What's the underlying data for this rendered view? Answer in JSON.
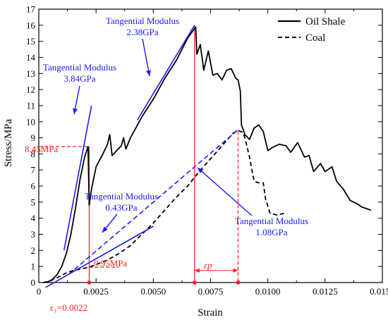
{
  "chart_data": {
    "type": "line",
    "xlabel": "Strain",
    "ylabel": "Stress/MPa",
    "xlim": [
      0,
      0.015
    ],
    "ylim": [
      0,
      17
    ],
    "x_ticks": [
      "0",
      "0.0025",
      "0.0050",
      "0.0075",
      "0.0100",
      "0.0125",
      "0.0150"
    ],
    "y_ticks": [
      "0",
      "1",
      "2",
      "3",
      "4",
      "5",
      "6",
      "7",
      "8",
      "9",
      "10",
      "11",
      "12",
      "13",
      "14",
      "15",
      "16",
      "17"
    ],
    "legend_position": "top-right",
    "series": [
      {
        "name": "Oil Shale",
        "style": "solid",
        "color": "#000000",
        "points": [
          [
            0.0002,
            0
          ],
          [
            0.0004,
            0.05
          ],
          [
            0.0006,
            0.2
          ],
          [
            0.0008,
            0.5
          ],
          [
            0.001,
            1.0
          ],
          [
            0.0012,
            1.8
          ],
          [
            0.0014,
            3.0
          ],
          [
            0.0016,
            4.6
          ],
          [
            0.0018,
            6.4
          ],
          [
            0.002,
            7.8
          ],
          [
            0.00215,
            8.45
          ],
          [
            0.0022,
            4.8
          ],
          [
            0.0023,
            5.8
          ],
          [
            0.0025,
            7.2
          ],
          [
            0.0028,
            8.0
          ],
          [
            0.003,
            8.6
          ],
          [
            0.0031,
            9.2
          ],
          [
            0.0032,
            7.9
          ],
          [
            0.0034,
            8.2
          ],
          [
            0.0036,
            8.5
          ],
          [
            0.0037,
            9.0
          ],
          [
            0.0038,
            8.3
          ],
          [
            0.004,
            9.0
          ],
          [
            0.0045,
            10.3
          ],
          [
            0.005,
            11.4
          ],
          [
            0.0055,
            12.7
          ],
          [
            0.006,
            13.8
          ],
          [
            0.0065,
            15.2
          ],
          [
            0.0068,
            15.8
          ],
          [
            0.00685,
            15.9
          ],
          [
            0.0069,
            14.2
          ],
          [
            0.00705,
            14.8
          ],
          [
            0.0072,
            13.2
          ],
          [
            0.0074,
            14.4
          ],
          [
            0.0076,
            12.9
          ],
          [
            0.0078,
            13.0
          ],
          [
            0.008,
            12.6
          ],
          [
            0.0082,
            13.2
          ],
          [
            0.0084,
            13.3
          ],
          [
            0.0086,
            12.7
          ],
          [
            0.0087,
            12.6
          ],
          [
            0.0088,
            11.9
          ],
          [
            0.00885,
            9.8
          ],
          [
            0.009,
            9.2
          ],
          [
            0.0092,
            8.9
          ],
          [
            0.0094,
            9.6
          ],
          [
            0.0096,
            9.8
          ],
          [
            0.0098,
            9.4
          ],
          [
            0.01,
            8.2
          ],
          [
            0.0102,
            8.4
          ],
          [
            0.0105,
            8.6
          ],
          [
            0.0108,
            8.5
          ],
          [
            0.011,
            8.1
          ],
          [
            0.0113,
            8.7
          ],
          [
            0.0116,
            7.8
          ],
          [
            0.0118,
            7.9
          ],
          [
            0.012,
            6.9
          ],
          [
            0.0123,
            7.4
          ],
          [
            0.0125,
            6.9
          ],
          [
            0.0128,
            7.2
          ],
          [
            0.013,
            6.3
          ],
          [
            0.0133,
            5.8
          ],
          [
            0.0136,
            5.1
          ],
          [
            0.0139,
            4.9
          ],
          [
            0.0141,
            4.7
          ],
          [
            0.0143,
            4.6
          ],
          [
            0.0145,
            4.5
          ]
        ]
      },
      {
        "name": "Coal",
        "style": "dashed",
        "color": "#000000",
        "points": [
          [
            0.0002,
            0
          ],
          [
            0.0005,
            0.1
          ],
          [
            0.0008,
            0.3
          ],
          [
            0.0012,
            0.6
          ],
          [
            0.0015,
            0.75
          ],
          [
            0.0022,
            0.95
          ],
          [
            0.003,
            1.4
          ],
          [
            0.0035,
            1.8
          ],
          [
            0.004,
            2.3
          ],
          [
            0.0045,
            3.0
          ],
          [
            0.005,
            3.7
          ],
          [
            0.0055,
            4.5
          ],
          [
            0.006,
            5.3
          ],
          [
            0.0065,
            6.0
          ],
          [
            0.007,
            6.9
          ],
          [
            0.0075,
            7.7
          ],
          [
            0.008,
            8.5
          ],
          [
            0.0083,
            9.0
          ],
          [
            0.0085,
            9.3
          ],
          [
            0.0087,
            9.45
          ],
          [
            0.0089,
            9.35
          ],
          [
            0.009,
            9.0
          ],
          [
            0.0092,
            7.8
          ],
          [
            0.0094,
            6.3
          ],
          [
            0.0096,
            6.2
          ],
          [
            0.0098,
            6.2
          ],
          [
            0.0099,
            5.2
          ],
          [
            0.0101,
            4.3
          ],
          [
            0.0104,
            4.2
          ],
          [
            0.0107,
            4.3
          ]
        ]
      }
    ],
    "annotations": [
      {
        "text_lines": [
          "Tangential Modulus",
          "3.84GPa"
        ],
        "color": "#1a1aff"
      },
      {
        "text_lines": [
          "Tangential Modulus",
          "2.38GPa"
        ],
        "color": "#1a1aff"
      },
      {
        "text_lines": [
          "Tangential Modulus",
          "0.43GPa"
        ],
        "color": "#1a1aff"
      },
      {
        "text_lines": [
          "Tangential Modulus",
          "1.08GPa"
        ],
        "color": "#1a1aff"
      },
      {
        "text": "8.45MPa",
        "color": "#ff1a1a"
      },
      {
        "text": "0.95MPa",
        "color": "#ff1a1a"
      },
      {
        "text": "ε₁=0.0022",
        "color": "#ff1a1a"
      },
      {
        "text": "εp",
        "color": "#ff1a1a"
      }
    ]
  }
}
